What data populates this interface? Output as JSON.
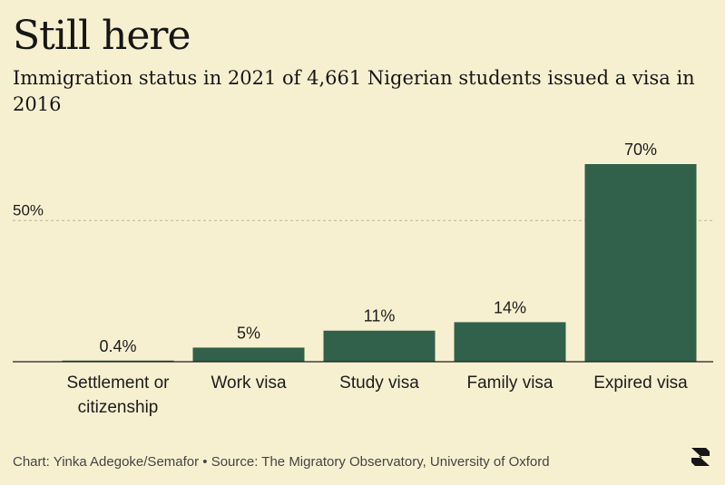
{
  "title": "Still here",
  "subtitle": "Immigration status in 2021 of 4,661 Nigerian students issued a visa in 2016",
  "source": "Chart: Yinka Adegoke/Semafor • Source: The Migratory Observatory, University of Oxford",
  "logo_icon": "semafor-logo-icon",
  "colors": {
    "bar": "#31614a",
    "background": "#f7f0d0",
    "text": "#1c1c1c",
    "gridline": "#b8b29a"
  },
  "chart_data": {
    "type": "bar",
    "categories": [
      [
        "Settlement or",
        "citizenship"
      ],
      [
        "Work visa"
      ],
      [
        "Study visa"
      ],
      [
        "Family visa"
      ],
      [
        "Expired visa"
      ]
    ],
    "values": [
      0.4,
      5,
      11,
      14,
      70
    ],
    "value_labels": [
      "0.4%",
      "5%",
      "11%",
      "14%",
      "70%"
    ],
    "gridline": {
      "value": 50,
      "label": "50%",
      "style": "dotted"
    },
    "ylim": [
      0,
      70
    ],
    "grid": false
  }
}
